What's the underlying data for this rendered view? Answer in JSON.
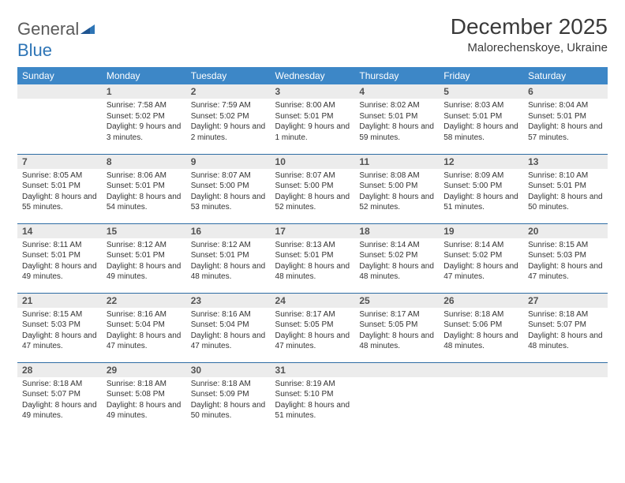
{
  "logo": {
    "word1": "General",
    "word2": "Blue"
  },
  "title": "December 2025",
  "location": "Malorechenskoye, Ukraine",
  "colors": {
    "header_bg": "#3d87c7",
    "header_text": "#ffffff",
    "row_border": "#2e6da4",
    "daynum_bg": "#ececec",
    "daynum_text": "#525252",
    "body_text": "#333333",
    "logo_gray": "#5a5a5a",
    "logo_blue": "#2e75b6"
  },
  "day_headers": [
    "Sunday",
    "Monday",
    "Tuesday",
    "Wednesday",
    "Thursday",
    "Friday",
    "Saturday"
  ],
  "weeks": [
    [
      {
        "n": "",
        "sr": "",
        "ss": "",
        "dl": ""
      },
      {
        "n": "1",
        "sr": "Sunrise: 7:58 AM",
        "ss": "Sunset: 5:02 PM",
        "dl": "Daylight: 9 hours and 3 minutes."
      },
      {
        "n": "2",
        "sr": "Sunrise: 7:59 AM",
        "ss": "Sunset: 5:02 PM",
        "dl": "Daylight: 9 hours and 2 minutes."
      },
      {
        "n": "3",
        "sr": "Sunrise: 8:00 AM",
        "ss": "Sunset: 5:01 PM",
        "dl": "Daylight: 9 hours and 1 minute."
      },
      {
        "n": "4",
        "sr": "Sunrise: 8:02 AM",
        "ss": "Sunset: 5:01 PM",
        "dl": "Daylight: 8 hours and 59 minutes."
      },
      {
        "n": "5",
        "sr": "Sunrise: 8:03 AM",
        "ss": "Sunset: 5:01 PM",
        "dl": "Daylight: 8 hours and 58 minutes."
      },
      {
        "n": "6",
        "sr": "Sunrise: 8:04 AM",
        "ss": "Sunset: 5:01 PM",
        "dl": "Daylight: 8 hours and 57 minutes."
      }
    ],
    [
      {
        "n": "7",
        "sr": "Sunrise: 8:05 AM",
        "ss": "Sunset: 5:01 PM",
        "dl": "Daylight: 8 hours and 55 minutes."
      },
      {
        "n": "8",
        "sr": "Sunrise: 8:06 AM",
        "ss": "Sunset: 5:01 PM",
        "dl": "Daylight: 8 hours and 54 minutes."
      },
      {
        "n": "9",
        "sr": "Sunrise: 8:07 AM",
        "ss": "Sunset: 5:00 PM",
        "dl": "Daylight: 8 hours and 53 minutes."
      },
      {
        "n": "10",
        "sr": "Sunrise: 8:07 AM",
        "ss": "Sunset: 5:00 PM",
        "dl": "Daylight: 8 hours and 52 minutes."
      },
      {
        "n": "11",
        "sr": "Sunrise: 8:08 AM",
        "ss": "Sunset: 5:00 PM",
        "dl": "Daylight: 8 hours and 52 minutes."
      },
      {
        "n": "12",
        "sr": "Sunrise: 8:09 AM",
        "ss": "Sunset: 5:00 PM",
        "dl": "Daylight: 8 hours and 51 minutes."
      },
      {
        "n": "13",
        "sr": "Sunrise: 8:10 AM",
        "ss": "Sunset: 5:01 PM",
        "dl": "Daylight: 8 hours and 50 minutes."
      }
    ],
    [
      {
        "n": "14",
        "sr": "Sunrise: 8:11 AM",
        "ss": "Sunset: 5:01 PM",
        "dl": "Daylight: 8 hours and 49 minutes."
      },
      {
        "n": "15",
        "sr": "Sunrise: 8:12 AM",
        "ss": "Sunset: 5:01 PM",
        "dl": "Daylight: 8 hours and 49 minutes."
      },
      {
        "n": "16",
        "sr": "Sunrise: 8:12 AM",
        "ss": "Sunset: 5:01 PM",
        "dl": "Daylight: 8 hours and 48 minutes."
      },
      {
        "n": "17",
        "sr": "Sunrise: 8:13 AM",
        "ss": "Sunset: 5:01 PM",
        "dl": "Daylight: 8 hours and 48 minutes."
      },
      {
        "n": "18",
        "sr": "Sunrise: 8:14 AM",
        "ss": "Sunset: 5:02 PM",
        "dl": "Daylight: 8 hours and 48 minutes."
      },
      {
        "n": "19",
        "sr": "Sunrise: 8:14 AM",
        "ss": "Sunset: 5:02 PM",
        "dl": "Daylight: 8 hours and 47 minutes."
      },
      {
        "n": "20",
        "sr": "Sunrise: 8:15 AM",
        "ss": "Sunset: 5:03 PM",
        "dl": "Daylight: 8 hours and 47 minutes."
      }
    ],
    [
      {
        "n": "21",
        "sr": "Sunrise: 8:15 AM",
        "ss": "Sunset: 5:03 PM",
        "dl": "Daylight: 8 hours and 47 minutes."
      },
      {
        "n": "22",
        "sr": "Sunrise: 8:16 AM",
        "ss": "Sunset: 5:04 PM",
        "dl": "Daylight: 8 hours and 47 minutes."
      },
      {
        "n": "23",
        "sr": "Sunrise: 8:16 AM",
        "ss": "Sunset: 5:04 PM",
        "dl": "Daylight: 8 hours and 47 minutes."
      },
      {
        "n": "24",
        "sr": "Sunrise: 8:17 AM",
        "ss": "Sunset: 5:05 PM",
        "dl": "Daylight: 8 hours and 47 minutes."
      },
      {
        "n": "25",
        "sr": "Sunrise: 8:17 AM",
        "ss": "Sunset: 5:05 PM",
        "dl": "Daylight: 8 hours and 48 minutes."
      },
      {
        "n": "26",
        "sr": "Sunrise: 8:18 AM",
        "ss": "Sunset: 5:06 PM",
        "dl": "Daylight: 8 hours and 48 minutes."
      },
      {
        "n": "27",
        "sr": "Sunrise: 8:18 AM",
        "ss": "Sunset: 5:07 PM",
        "dl": "Daylight: 8 hours and 48 minutes."
      }
    ],
    [
      {
        "n": "28",
        "sr": "Sunrise: 8:18 AM",
        "ss": "Sunset: 5:07 PM",
        "dl": "Daylight: 8 hours and 49 minutes."
      },
      {
        "n": "29",
        "sr": "Sunrise: 8:18 AM",
        "ss": "Sunset: 5:08 PM",
        "dl": "Daylight: 8 hours and 49 minutes."
      },
      {
        "n": "30",
        "sr": "Sunrise: 8:18 AM",
        "ss": "Sunset: 5:09 PM",
        "dl": "Daylight: 8 hours and 50 minutes."
      },
      {
        "n": "31",
        "sr": "Sunrise: 8:19 AM",
        "ss": "Sunset: 5:10 PM",
        "dl": "Daylight: 8 hours and 51 minutes."
      },
      {
        "n": "",
        "sr": "",
        "ss": "",
        "dl": ""
      },
      {
        "n": "",
        "sr": "",
        "ss": "",
        "dl": ""
      },
      {
        "n": "",
        "sr": "",
        "ss": "",
        "dl": ""
      }
    ]
  ]
}
